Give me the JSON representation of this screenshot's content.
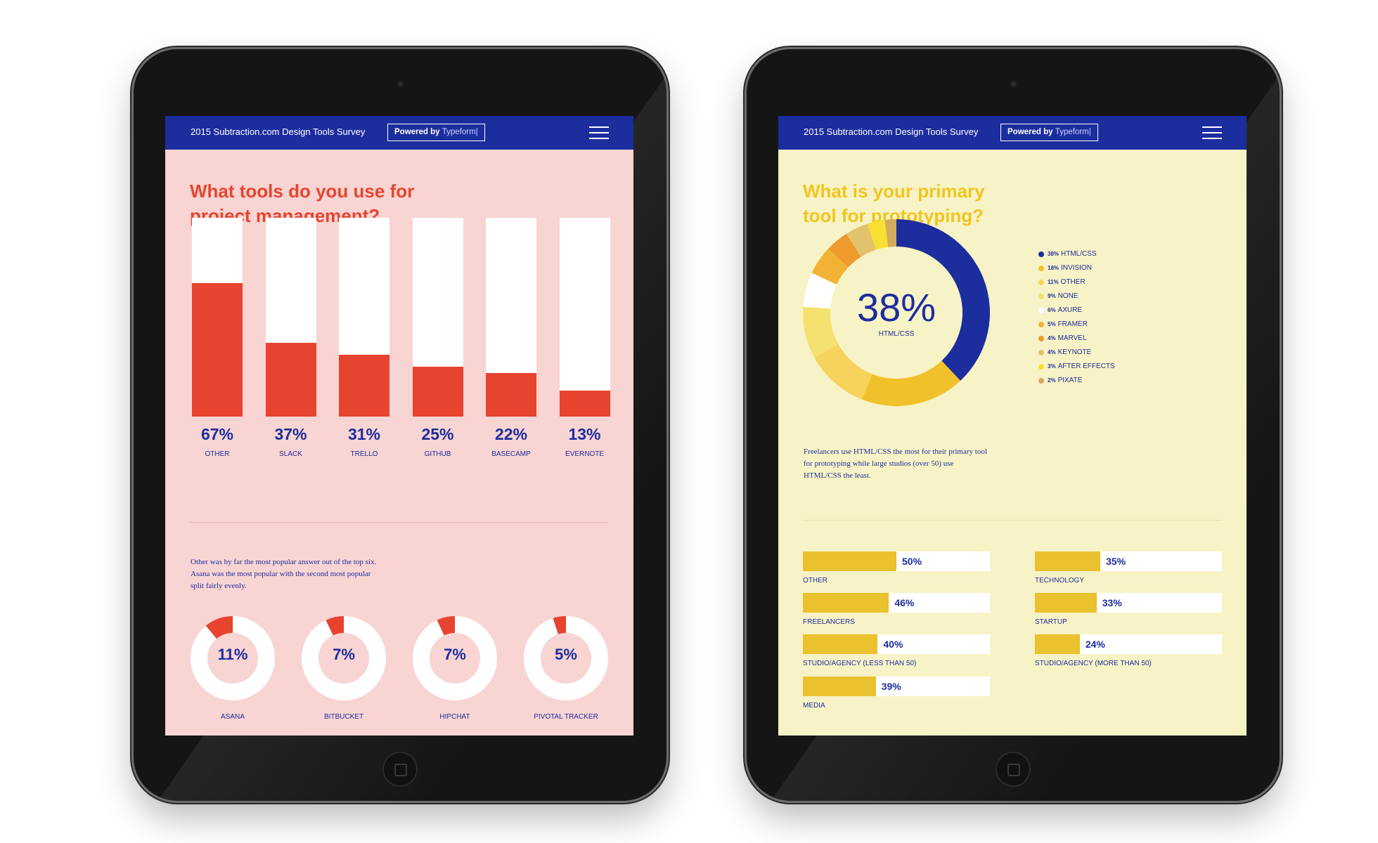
{
  "header": {
    "title": "2015 Subtraction.com Design Tools Survey",
    "powered_by": "Powered by",
    "brand": "Typeform|"
  },
  "colors": {
    "navy": "#1c2d9e",
    "red": "#e7442f",
    "pink_bg": "#f8d4d3",
    "yellow_bg": "#f8f3c6",
    "gold": "#eac12e"
  },
  "left": {
    "question": [
      "What tools do you use for",
      "project management?"
    ],
    "note": "Other was by far the most popular answer out of the top six. Asana was the most popular with the second most popular split fairly evenly."
  },
  "right": {
    "question": [
      "What is your primary",
      "tool for prototyping?"
    ],
    "center_value": "38%",
    "center_label": "HTML/CSS",
    "note": "Freelancers use HTML/CSS the most for their primary tool for prototyping while large studios (over 50) use HTML/CSS the least."
  },
  "chart_data": [
    {
      "type": "bar",
      "title": "What tools do you use for project management?",
      "categories": [
        "OTHER",
        "SLACK",
        "TRELLO",
        "GITHUB",
        "BASECAMP",
        "EVERNOTE"
      ],
      "values": [
        67,
        37,
        31,
        25,
        22,
        13
      ],
      "labels": [
        "67%",
        "37%",
        "31%",
        "25%",
        "22%",
        "13%"
      ],
      "ylim": [
        0,
        100
      ]
    },
    {
      "type": "pie",
      "categories": [
        "ASANA",
        "BITBUCKET",
        "HIPCHAT",
        "PIVOTAL TRACKER"
      ],
      "values": [
        11,
        7,
        7,
        5
      ],
      "labels": [
        "11%",
        "7%",
        "7%",
        "5%"
      ]
    },
    {
      "type": "pie",
      "title": "What is your primary tool for prototyping?",
      "categories": [
        "HTML/CSS",
        "INVISION",
        "OTHER",
        "NONE",
        "AXURE",
        "FRAMER",
        "MARVEL",
        "KEYNOTE",
        "AFTER EFFECTS",
        "PIXATE"
      ],
      "values": [
        38,
        18,
        11,
        9,
        6,
        5,
        4,
        4,
        3,
        2
      ],
      "labels": [
        "38%",
        "18%",
        "11%",
        "9%",
        "6%",
        "5%",
        "4%",
        "4%",
        "3%",
        "2%"
      ],
      "colors": [
        "#1c2d9e",
        "#f0c12b",
        "#f7d25c",
        "#f5e170",
        "#ffffff",
        "#f2b233",
        "#ef9a2e",
        "#e2c26c",
        "#f8e032",
        "#d4aa5e"
      ]
    },
    {
      "type": "bar",
      "orientation": "horizontal",
      "categories": [
        "OTHER",
        "FREELANCERS",
        "STUDIO/AGENCY (LESS THAN 50)",
        "MEDIA",
        "TECHNOLOGY",
        "STARTUP",
        "STUDIO/AGENCY (MORE THAN 50)"
      ],
      "values": [
        50,
        46,
        40,
        39,
        35,
        33,
        24
      ],
      "labels": [
        "50%",
        "46%",
        "40%",
        "39%",
        "35%",
        "33%",
        "24%"
      ],
      "xlim": [
        0,
        100
      ]
    }
  ]
}
